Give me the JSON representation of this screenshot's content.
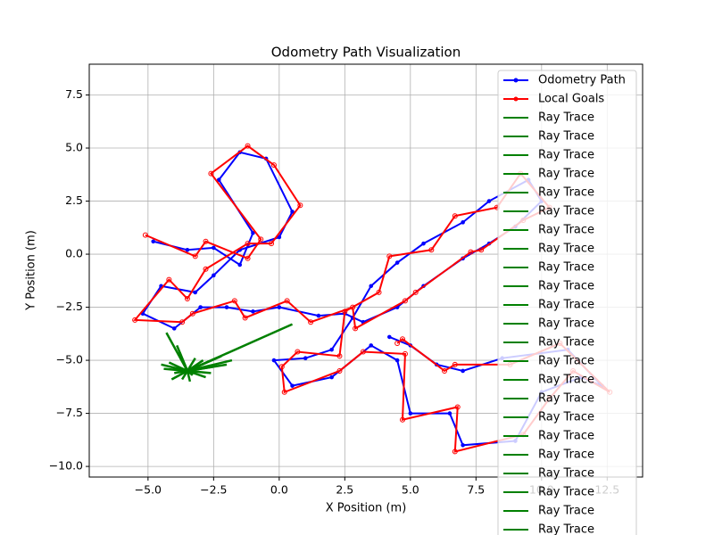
{
  "chart_data": {
    "type": "line",
    "title": "Odometry Path Visualization",
    "x_label": "X Position (m)",
    "y_label": "Y Position (m)",
    "xlim": [
      -7.24,
      13.85
    ],
    "ylim": [
      -10.5,
      8.95
    ],
    "xticks": [
      {
        "value": -5,
        "label": "−5.0"
      },
      {
        "value": -2.5,
        "label": "−2.5"
      },
      {
        "value": 0,
        "label": "0.0"
      },
      2.5,
      {
        "value": 5,
        "label": "5.0"
      },
      7.5,
      {
        "value": 10,
        "label": "10.0"
      },
      12.5
    ],
    "yticks": [
      {
        "value": -10,
        "label": "−10.0"
      },
      {
        "value": -7.5,
        "label": "−7.5"
      },
      {
        "value": -5,
        "label": "−5.0"
      },
      {
        "value": -2.5,
        "label": "−2.5"
      },
      {
        "value": 0,
        "label": "0.0"
      },
      2.5,
      {
        "value": 5,
        "label": "5.0"
      },
      7.5
    ],
    "grid": true,
    "legend": "upper right",
    "series": [
      {
        "name": "Odometry Path",
        "color": "#0000ff",
        "marker": "dot",
        "x": [
          -4.8,
          -3.5,
          -2.5,
          -1.5,
          -1.0,
          -2.3,
          -1.5,
          -0.5,
          0.5,
          0,
          -1.5,
          -2.5,
          -3.2,
          -4.5,
          -5.2,
          -4.0,
          -3.0,
          -2.0,
          -1,
          0,
          1.5,
          2.5,
          3.2,
          4.5,
          5.5,
          7,
          8,
          9,
          10,
          9.5,
          8,
          7,
          5.5,
          4.5,
          3.5,
          2.8,
          2.0,
          1.0,
          -0.2,
          0.5,
          2.0,
          3.5,
          4.5,
          5,
          6.5,
          7,
          9,
          10,
          11.5,
          12.3,
          11,
          8.5,
          7,
          6,
          5,
          4.2
        ],
        "values": [
          0.6,
          0.2,
          0.3,
          -0.5,
          1.0,
          3.5,
          4.8,
          4.5,
          2.0,
          0.8,
          0.2,
          -1.0,
          -1.8,
          -1.5,
          -2.8,
          -3.5,
          -2.5,
          -2.5,
          -2.7,
          -2.5,
          -2.9,
          -2.8,
          -3.2,
          -2.5,
          -1.5,
          -0.2,
          0.5,
          1.3,
          2.5,
          3.5,
          2.5,
          1.5,
          0.5,
          -0.4,
          -1.5,
          -3.0,
          -4.5,
          -4.9,
          -5.0,
          -6.2,
          -5.8,
          -4.3,
          -5,
          -7.5,
          -7.5,
          -9,
          -8.8,
          -6.5,
          -5.8,
          -6.2,
          -4.5,
          -4.9,
          -5.5,
          -5.2,
          -4.3,
          -3.9
        ]
      },
      {
        "name": "Local Goals",
        "color": "#ff0000",
        "marker": "ring",
        "x": [
          -5.1,
          -3.2,
          -2.8,
          -1.2,
          -0.7,
          -2.6,
          -1.2,
          -0.2,
          0.8,
          -0.3,
          -1.2,
          -2.8,
          -3.5,
          -4.2,
          -5.5,
          -3.7,
          -3.3,
          -1.7,
          -1.3,
          0.3,
          1.2,
          2.8,
          2.9,
          4.8,
          5.2,
          7.3,
          7.7,
          9.3,
          10.3,
          9.2,
          8.3,
          6.7,
          5.8,
          4.2,
          3.8,
          2.5,
          2.3,
          0.7,
          0.1,
          0.2,
          2.3,
          3.2,
          4.8,
          4.7,
          6.8,
          6.7,
          9.3,
          10.3,
          11.2,
          12.6,
          10.7,
          8.8,
          6.7,
          6.3,
          4.7,
          4.5
        ],
        "values": [
          0.9,
          -0.1,
          0.6,
          -0.2,
          0.7,
          3.8,
          5.1,
          4.2,
          2.3,
          0.5,
          0.5,
          -0.7,
          -2.1,
          -1.2,
          -3.1,
          -3.2,
          -2.8,
          -2.2,
          -3.0,
          -2.2,
          -3.2,
          -2.5,
          -3.5,
          -2.2,
          -1.8,
          0.1,
          0.2,
          1.6,
          2.2,
          3.8,
          2.2,
          1.8,
          0.2,
          -0.1,
          -1.8,
          -2.7,
          -4.8,
          -4.6,
          -5.3,
          -6.5,
          -5.5,
          -4.6,
          -4.7,
          -7.8,
          -7.2,
          -9.3,
          -8.5,
          -6.8,
          -5.5,
          -6.5,
          -4.2,
          -5.2,
          -5.2,
          -5.5,
          -4.0,
          -4.2
        ]
      },
      {
        "name": "Ray Trace",
        "color": "#008000",
        "x": [
          -3.5,
          0.5
        ],
        "values": [
          -5.5,
          -3.3
        ]
      },
      {
        "name": "Ray Trace",
        "color": "#008000",
        "x": [
          -3.5,
          -4.3
        ],
        "values": [
          -5.5,
          -3.7
        ]
      },
      {
        "name": "Ray Trace",
        "color": "#008000",
        "x": [
          -3.5,
          -2.2
        ],
        "values": [
          -5.5,
          -4.8
        ]
      },
      {
        "name": "Ray Trace",
        "color": "#008000",
        "x": [
          -3.5,
          -4.0
        ],
        "values": [
          -5.5,
          -5.6
        ]
      },
      {
        "name": "Ray Trace",
        "color": "#008000",
        "x": [
          -3.5,
          -2.9
        ],
        "values": [
          -5.5,
          -5.0
        ]
      },
      {
        "name": "Ray Trace",
        "color": "#008000",
        "x": [
          -3.5,
          -3.4
        ],
        "values": [
          -5.5,
          -6.0
        ]
      },
      {
        "name": "Ray Trace",
        "color": "#008000",
        "x": [
          -3.5,
          -2.0
        ],
        "values": [
          -5.5,
          -5.2
        ]
      },
      {
        "name": "Ray Trace",
        "color": "#008000",
        "x": [
          -3.5,
          -4.2
        ],
        "values": [
          -5.5,
          -5.1
        ]
      },
      {
        "name": "Ray Trace",
        "color": "#008000",
        "x": [
          -3.5,
          -3.0
        ],
        "values": [
          -5.5,
          -5.4
        ]
      },
      {
        "name": "Ray Trace",
        "color": "#008000",
        "x": [
          -3.5,
          -3.8
        ],
        "values": [
          -5.5,
          -4.6
        ]
      },
      {
        "name": "Ray Trace",
        "color": "#008000",
        "x": [
          -3.5,
          -2.6
        ],
        "values": [
          -5.5,
          -5.6
        ]
      },
      {
        "name": "Ray Trace",
        "color": "#008000",
        "x": [
          -3.5,
          -3.2
        ],
        "values": [
          -5.5,
          -4.9
        ]
      },
      {
        "name": "Ray Trace",
        "color": "#008000",
        "x": [
          -3.5,
          -4.1
        ],
        "values": [
          -5.5,
          -5.9
        ]
      },
      {
        "name": "Ray Trace",
        "color": "#008000",
        "x": [
          -3.5,
          -2.4
        ],
        "values": [
          -5.5,
          -4.9
        ]
      },
      {
        "name": "Ray Trace",
        "color": "#008000",
        "x": [
          -3.5,
          -3.6
        ],
        "values": [
          -5.5,
          -5.2
        ]
      },
      {
        "name": "Ray Trace",
        "color": "#008000",
        "x": [
          -3.5,
          -2.8
        ],
        "values": [
          -5.5,
          -5.8
        ]
      },
      {
        "name": "Ray Trace",
        "color": "#008000",
        "x": [
          -3.5,
          -4.4
        ],
        "values": [
          -5.5,
          -5.4
        ]
      },
      {
        "name": "Ray Trace",
        "color": "#008000",
        "x": [
          -3.5,
          -1.8
        ],
        "values": [
          -5.5,
          -5.0
        ]
      },
      {
        "name": "Ray Trace",
        "color": "#008000",
        "x": [
          -3.5,
          -3.9
        ],
        "values": [
          -5.5,
          -4.3
        ]
      },
      {
        "name": "Ray Trace",
        "color": "#008000",
        "x": [
          -3.5,
          -3.3
        ],
        "values": [
          -5.5,
          -5.7
        ]
      },
      {
        "name": "Ray Trace",
        "color": "#008000",
        "x": [
          -3.5,
          -2.5
        ],
        "values": [
          -5.5,
          -5.3
        ]
      },
      {
        "name": "Ray Trace",
        "color": "#008000",
        "x": [
          -3.5,
          -4.5
        ],
        "values": [
          -5.5,
          -5.2
        ]
      },
      {
        "name": "Ray Trace",
        "color": "#008000",
        "x": [
          -3.5,
          -3.7
        ],
        "values": [
          -5.5,
          -5.9
        ]
      }
    ]
  }
}
